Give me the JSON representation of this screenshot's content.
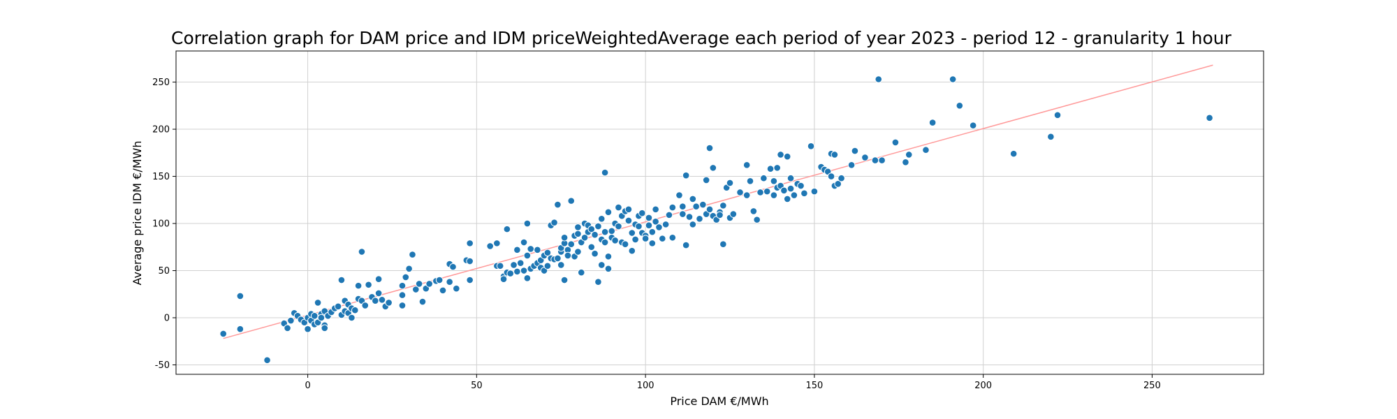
{
  "chart_data": {
    "type": "scatter",
    "title": "Correlation graph for DAM price and IDM priceWeightedAverage each period of year 2023 - period 12 - granularity 1 hour",
    "xlabel": "Price DAM €/MWh",
    "ylabel": "Average price IDM €/MWh",
    "xlim": [
      -39,
      283
    ],
    "ylim": [
      -60,
      283
    ],
    "xticks": [
      0,
      50,
      100,
      150,
      200,
      250
    ],
    "yticks": [
      -50,
      0,
      50,
      100,
      150,
      200,
      250
    ],
    "grid": true,
    "point_color": "#1f77b4",
    "trend_color": "#ff9999",
    "trend_line": [
      [
        -25,
        -22
      ],
      [
        268,
        268
      ]
    ],
    "points": [
      [
        -25,
        -17
      ],
      [
        -20,
        23
      ],
      [
        -20,
        -12
      ],
      [
        -12,
        -45
      ],
      [
        -7,
        -6
      ],
      [
        -6,
        -11
      ],
      [
        -5,
        -3
      ],
      [
        -4,
        5
      ],
      [
        -3,
        2
      ],
      [
        -2,
        -2
      ],
      [
        -1,
        -5
      ],
      [
        0,
        0
      ],
      [
        0,
        -12
      ],
      [
        1,
        -3
      ],
      [
        1,
        4
      ],
      [
        2,
        -7
      ],
      [
        2,
        2
      ],
      [
        3,
        16
      ],
      [
        3,
        -5
      ],
      [
        4,
        4
      ],
      [
        4,
        0
      ],
      [
        5,
        -8
      ],
      [
        5,
        7
      ],
      [
        5,
        -11
      ],
      [
        6,
        2
      ],
      [
        7,
        6
      ],
      [
        8,
        10
      ],
      [
        9,
        12
      ],
      [
        10,
        3
      ],
      [
        10,
        40
      ],
      [
        11,
        18
      ],
      [
        11,
        7
      ],
      [
        12,
        14
      ],
      [
        12,
        5
      ],
      [
        13,
        0
      ],
      [
        13,
        10
      ],
      [
        14,
        8
      ],
      [
        15,
        20
      ],
      [
        15,
        34
      ],
      [
        16,
        70
      ],
      [
        16,
        18
      ],
      [
        17,
        13
      ],
      [
        18,
        35
      ],
      [
        19,
        22
      ],
      [
        20,
        18
      ],
      [
        21,
        26
      ],
      [
        21,
        41
      ],
      [
        22,
        19
      ],
      [
        23,
        12
      ],
      [
        24,
        16
      ],
      [
        28,
        34
      ],
      [
        28,
        24
      ],
      [
        28,
        13
      ],
      [
        29,
        43
      ],
      [
        30,
        52
      ],
      [
        31,
        67
      ],
      [
        32,
        30
      ],
      [
        33,
        36
      ],
      [
        34,
        17
      ],
      [
        35,
        31
      ],
      [
        36,
        36
      ],
      [
        38,
        39
      ],
      [
        39,
        40
      ],
      [
        40,
        29
      ],
      [
        42,
        38
      ],
      [
        42,
        57
      ],
      [
        43,
        54
      ],
      [
        44,
        31
      ],
      [
        47,
        61
      ],
      [
        48,
        79
      ],
      [
        48,
        40
      ],
      [
        48,
        60
      ],
      [
        54,
        76
      ],
      [
        56,
        55
      ],
      [
        56,
        79
      ],
      [
        57,
        55
      ],
      [
        58,
        44
      ],
      [
        58,
        41
      ],
      [
        59,
        94
      ],
      [
        59,
        48
      ],
      [
        60,
        47
      ],
      [
        61,
        56
      ],
      [
        62,
        49
      ],
      [
        62,
        72
      ],
      [
        63,
        58
      ],
      [
        64,
        80
      ],
      [
        64,
        50
      ],
      [
        65,
        42
      ],
      [
        65,
        66
      ],
      [
        65,
        100
      ],
      [
        66,
        73
      ],
      [
        66,
        52
      ],
      [
        67,
        55
      ],
      [
        68,
        72
      ],
      [
        68,
        58
      ],
      [
        69,
        61
      ],
      [
        69,
        53
      ],
      [
        70,
        66
      ],
      [
        70,
        50
      ],
      [
        71,
        55
      ],
      [
        71,
        69
      ],
      [
        72,
        98
      ],
      [
        72,
        63
      ],
      [
        73,
        62
      ],
      [
        73,
        101
      ],
      [
        74,
        63
      ],
      [
        74,
        120
      ],
      [
        75,
        70
      ],
      [
        75,
        74
      ],
      [
        75,
        56
      ],
      [
        76,
        79
      ],
      [
        76,
        40
      ],
      [
        76,
        85
      ],
      [
        77,
        72
      ],
      [
        77,
        66
      ],
      [
        78,
        78
      ],
      [
        78,
        124
      ],
      [
        79,
        65
      ],
      [
        79,
        87
      ],
      [
        80,
        89
      ],
      [
        80,
        70
      ],
      [
        80,
        96
      ],
      [
        81,
        80
      ],
      [
        81,
        48
      ],
      [
        82,
        100
      ],
      [
        82,
        85
      ],
      [
        83,
        91
      ],
      [
        83,
        98
      ],
      [
        84,
        75
      ],
      [
        84,
        94
      ],
      [
        85,
        68
      ],
      [
        85,
        88
      ],
      [
        86,
        97
      ],
      [
        86,
        38
      ],
      [
        87,
        83
      ],
      [
        87,
        105
      ],
      [
        87,
        56
      ],
      [
        88,
        154
      ],
      [
        88,
        91
      ],
      [
        88,
        80
      ],
      [
        89,
        52
      ],
      [
        89,
        65
      ],
      [
        89,
        112
      ],
      [
        90,
        92
      ],
      [
        90,
        85
      ],
      [
        91,
        100
      ],
      [
        91,
        82
      ],
      [
        92,
        97
      ],
      [
        92,
        117
      ],
      [
        93,
        108
      ],
      [
        93,
        80
      ],
      [
        94,
        113
      ],
      [
        94,
        78
      ],
      [
        95,
        115
      ],
      [
        95,
        103
      ],
      [
        96,
        90
      ],
      [
        96,
        71
      ],
      [
        97,
        99
      ],
      [
        97,
        83
      ],
      [
        98,
        97
      ],
      [
        98,
        108
      ],
      [
        99,
        111
      ],
      [
        99,
        90
      ],
      [
        100,
        87
      ],
      [
        100,
        84
      ],
      [
        101,
        106
      ],
      [
        101,
        98
      ],
      [
        102,
        91
      ],
      [
        102,
        79
      ],
      [
        103,
        102
      ],
      [
        103,
        115
      ],
      [
        104,
        96
      ],
      [
        105,
        84
      ],
      [
        106,
        99
      ],
      [
        107,
        109
      ],
      [
        108,
        85
      ],
      [
        108,
        117
      ],
      [
        110,
        130
      ],
      [
        111,
        118
      ],
      [
        111,
        110
      ],
      [
        112,
        77
      ],
      [
        112,
        151
      ],
      [
        113,
        107
      ],
      [
        114,
        126
      ],
      [
        114,
        99
      ],
      [
        115,
        118
      ],
      [
        116,
        105
      ],
      [
        117,
        120
      ],
      [
        118,
        110
      ],
      [
        118,
        146
      ],
      [
        119,
        180
      ],
      [
        119,
        115
      ],
      [
        120,
        108
      ],
      [
        120,
        159
      ],
      [
        121,
        104
      ],
      [
        122,
        112
      ],
      [
        122,
        109
      ],
      [
        123,
        78
      ],
      [
        123,
        119
      ],
      [
        124,
        138
      ],
      [
        125,
        106
      ],
      [
        125,
        143
      ],
      [
        126,
        110
      ],
      [
        128,
        133
      ],
      [
        130,
        162
      ],
      [
        130,
        130
      ],
      [
        131,
        145
      ],
      [
        132,
        113
      ],
      [
        133,
        104
      ],
      [
        134,
        133
      ],
      [
        135,
        148
      ],
      [
        136,
        134
      ],
      [
        137,
        158
      ],
      [
        138,
        145
      ],
      [
        138,
        130
      ],
      [
        139,
        159
      ],
      [
        139,
        138
      ],
      [
        140,
        173
      ],
      [
        140,
        140
      ],
      [
        141,
        135
      ],
      [
        142,
        171
      ],
      [
        142,
        126
      ],
      [
        143,
        148
      ],
      [
        143,
        137
      ],
      [
        144,
        130
      ],
      [
        145,
        142
      ],
      [
        146,
        140
      ],
      [
        147,
        132
      ],
      [
        149,
        182
      ],
      [
        150,
        134
      ],
      [
        152,
        160
      ],
      [
        153,
        157
      ],
      [
        154,
        155
      ],
      [
        155,
        174
      ],
      [
        155,
        150
      ],
      [
        156,
        173
      ],
      [
        156,
        140
      ],
      [
        157,
        142
      ],
      [
        158,
        148
      ],
      [
        161,
        162
      ],
      [
        162,
        177
      ],
      [
        165,
        170
      ],
      [
        168,
        167
      ],
      [
        169,
        253
      ],
      [
        170,
        167
      ],
      [
        174,
        186
      ],
      [
        177,
        165
      ],
      [
        178,
        173
      ],
      [
        183,
        178
      ],
      [
        185,
        207
      ],
      [
        191,
        253
      ],
      [
        193,
        225
      ],
      [
        197,
        204
      ],
      [
        209,
        174
      ],
      [
        220,
        192
      ],
      [
        222,
        215
      ],
      [
        267,
        212
      ]
    ]
  }
}
